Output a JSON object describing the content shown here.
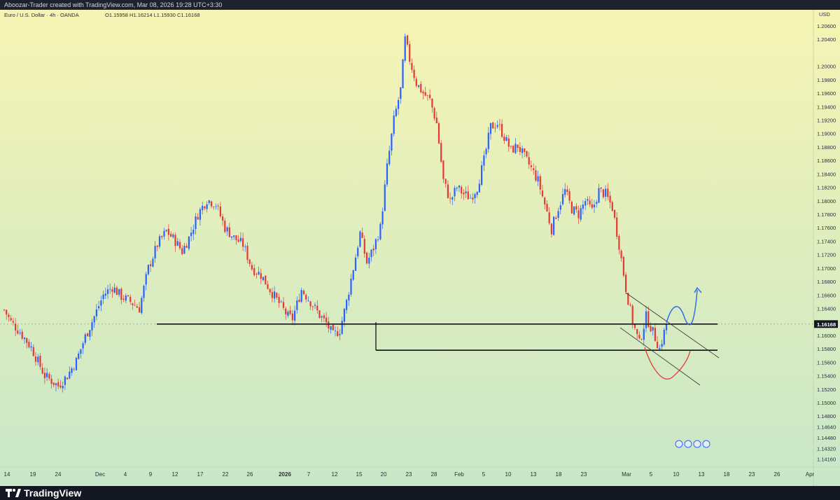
{
  "header": {
    "attribution": "Aboozar-Trader created with TradingView.com, Mar 08, 2026 19:28 UTC+3:30"
  },
  "chart_info": {
    "symbol": "Euro / U.S. Dollar · 4h · OANDA",
    "ohlc": "O1.15958  H1.16214  L1.15930  C1.16168"
  },
  "chart_data": {
    "type": "candlestick",
    "currency_label": "USD",
    "y_ticks": [
      "1.20600",
      "1.20400",
      "1.20000",
      "1.19800",
      "1.19600",
      "1.19400",
      "1.19200",
      "1.19000",
      "1.18800",
      "1.18600",
      "1.18400",
      "1.18200",
      "1.18000",
      "1.17800",
      "1.17600",
      "1.17400",
      "1.17200",
      "1.17000",
      "1.16800",
      "1.16600",
      "1.16400",
      "1.16000",
      "1.15800",
      "1.15600",
      "1.15400",
      "1.15200",
      "1.15000",
      "1.14800",
      "1.14640",
      "1.14480",
      "1.14320",
      "1.14160"
    ],
    "x_ticks": [
      "14",
      "19",
      "24",
      "Dec",
      "4",
      "9",
      "12",
      "17",
      "22",
      "26",
      "2026",
      "7",
      "12",
      "15",
      "20",
      "23",
      "28",
      "Feb",
      "5",
      "10",
      "13",
      "18",
      "23",
      "Mar",
      "5",
      "10",
      "13",
      "18",
      "23",
      "26",
      "Apr"
    ],
    "last_price": "1.16168",
    "price_path": [
      [
        0,
        1.1638
      ],
      [
        3,
        1.162
      ],
      [
        7,
        1.1605
      ],
      [
        12,
        1.1582
      ],
      [
        18,
        1.154
      ],
      [
        24,
        1.1525
      ],
      [
        28,
        1.154
      ],
      [
        32,
        1.1562
      ],
      [
        36,
        1.1598
      ],
      [
        40,
        1.1628
      ],
      [
        44,
        1.166
      ],
      [
        48,
        1.1672
      ],
      [
        52,
        1.1658
      ],
      [
        56,
        1.165
      ],
      [
        60,
        1.164
      ],
      [
        64,
        1.17
      ],
      [
        68,
        1.1735
      ],
      [
        72,
        1.1755
      ],
      [
        76,
        1.174
      ],
      [
        79,
        1.1725
      ],
      [
        82,
        1.1745
      ],
      [
        86,
        1.178
      ],
      [
        90,
        1.1802
      ],
      [
        94,
        1.1795
      ],
      [
        98,
        1.176
      ],
      [
        102,
        1.1745
      ],
      [
        106,
        1.1735
      ],
      [
        110,
        1.17
      ],
      [
        114,
        1.169
      ],
      [
        118,
        1.1668
      ],
      [
        122,
        1.1648
      ],
      [
        126,
        1.1628
      ],
      [
        128,
        1.1625
      ],
      [
        132,
        1.1668
      ],
      [
        136,
        1.165
      ],
      [
        140,
        1.163
      ],
      [
        143,
        1.1618
      ],
      [
        146,
        1.16
      ],
      [
        149,
        1.1608
      ],
      [
        152,
        1.165
      ],
      [
        155,
        1.17
      ],
      [
        158,
        1.1752
      ],
      [
        161,
        1.1708
      ],
      [
        164,
        1.173
      ],
      [
        167,
        1.176
      ],
      [
        170,
        1.185
      ],
      [
        173,
        1.192
      ],
      [
        176,
        1.1965
      ],
      [
        178,
        1.204
      ],
      [
        180,
        1.201
      ],
      [
        183,
        1.1975
      ],
      [
        186,
        1.196
      ],
      [
        189,
        1.195
      ],
      [
        192,
        1.1915
      ],
      [
        195,
        1.183
      ],
      [
        198,
        1.18
      ],
      [
        201,
        1.182
      ],
      [
        204,
        1.181
      ],
      [
        207,
        1.1805
      ],
      [
        210,
        1.182
      ],
      [
        213,
        1.186
      ],
      [
        216,
        1.191
      ],
      [
        219,
        1.1915
      ],
      [
        222,
        1.1895
      ],
      [
        225,
        1.1875
      ],
      [
        228,
        1.1882
      ],
      [
        231,
        1.1865
      ],
      [
        234,
        1.1848
      ],
      [
        237,
        1.183
      ],
      [
        240,
        1.1795
      ],
      [
        243,
        1.1758
      ],
      [
        246,
        1.179
      ],
      [
        249,
        1.1815
      ],
      [
        252,
        1.1788
      ],
      [
        255,
        1.178
      ],
      [
        258,
        1.18
      ],
      [
        261,
        1.1785
      ],
      [
        264,
        1.1815
      ],
      [
        267,
        1.181
      ],
      [
        270,
        1.179
      ],
      [
        273,
        1.1735
      ],
      [
        276,
        1.167
      ],
      [
        279,
        1.162
      ],
      [
        282,
        1.1588
      ],
      [
        285,
        1.1628
      ],
      [
        288,
        1.1605
      ],
      [
        291,
        1.158
      ],
      [
        294,
        1.1617
      ]
    ],
    "annotations": {
      "support_line_upper": 1.16168,
      "support_line_lower": 1.1578,
      "channel": "descending",
      "projection_up": "blue curve",
      "projection_down": "red curve"
    }
  },
  "colors": {
    "bull": "#2962ff",
    "bear": "#e53935",
    "bg_top": "#f5f3b5",
    "bg_bottom": "#c9e8c8",
    "projection_up": "#2f6fe4",
    "projection_down": "#e53935"
  },
  "footer": {
    "brand": "TradingView"
  }
}
